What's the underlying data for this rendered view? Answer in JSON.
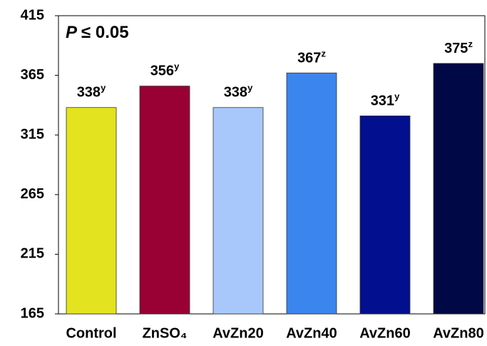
{
  "chart_data": {
    "type": "bar",
    "annotation": {
      "symbol": "P",
      "text": "≤ 0.05"
    },
    "categories": [
      "Control",
      "ZnSO₄",
      "AvZn20",
      "AvZn40",
      "AvZn60",
      "AvZn80"
    ],
    "values": [
      338,
      356,
      338,
      367,
      331,
      375
    ],
    "significance": [
      "y",
      "y",
      "y",
      "z",
      "y",
      "z"
    ],
    "colors": [
      "#e3e31f",
      "#990033",
      "#a8c8fc",
      "#3b86ee",
      "#02108f",
      "#000845"
    ],
    "ylim": [
      165,
      415
    ],
    "yticks": [
      165,
      215,
      265,
      315,
      365,
      415
    ],
    "grid": false
  }
}
